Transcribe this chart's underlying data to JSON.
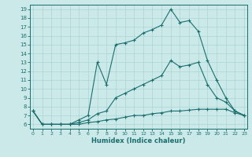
{
  "bg_color": "#cce9e9",
  "grid_color": "#aad4d4",
  "line_color": "#1a6e6e",
  "xlabel": "Humidex (Indice chaleur)",
  "xlim": [
    -0.3,
    23.3
  ],
  "ylim": [
    5.5,
    19.5
  ],
  "yticks": [
    6,
    7,
    8,
    9,
    10,
    11,
    12,
    13,
    14,
    15,
    16,
    17,
    18,
    19
  ],
  "xticks": [
    0,
    1,
    2,
    3,
    4,
    5,
    6,
    7,
    8,
    9,
    10,
    11,
    12,
    13,
    14,
    15,
    16,
    17,
    18,
    19,
    20,
    21,
    22,
    23
  ],
  "y_max": [
    7.5,
    6.0,
    6.0,
    6.0,
    6.0,
    6.5,
    7.0,
    13.0,
    10.5,
    15.0,
    15.2,
    15.5,
    16.3,
    16.7,
    17.2,
    19.0,
    17.5,
    17.7,
    16.5,
    13.2,
    11.0,
    9.0,
    7.5,
    7.0
  ],
  "y_avg": [
    7.5,
    6.0,
    6.0,
    6.0,
    6.0,
    6.2,
    6.5,
    7.2,
    7.5,
    9.0,
    9.5,
    10.0,
    10.5,
    11.0,
    11.5,
    13.2,
    12.5,
    12.7,
    13.0,
    10.5,
    9.0,
    8.5,
    7.5,
    7.0
  ],
  "y_min": [
    7.5,
    6.0,
    6.0,
    6.0,
    6.0,
    6.0,
    6.2,
    6.3,
    6.5,
    6.6,
    6.8,
    7.0,
    7.0,
    7.2,
    7.3,
    7.5,
    7.5,
    7.6,
    7.7,
    7.7,
    7.7,
    7.7,
    7.3,
    7.0
  ]
}
